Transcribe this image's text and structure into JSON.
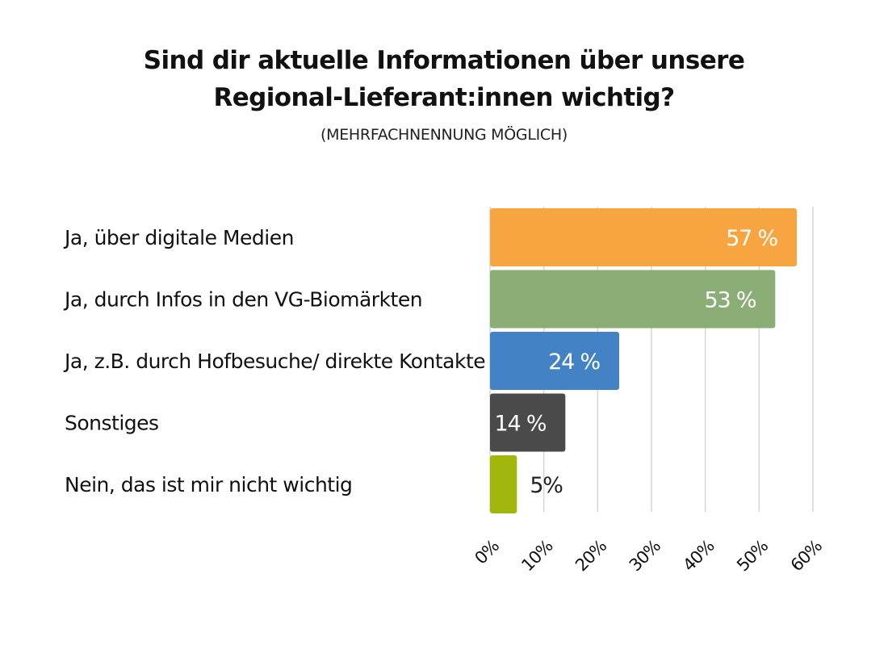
{
  "chart_data": {
    "type": "bar",
    "orientation": "horizontal",
    "title_lines": [
      "Sind dir aktuelle Informationen über unsere",
      "Regional-Lieferant:innen wichtig?"
    ],
    "subtitle": "(MEHRFACHNENNUNG MÖGLICH)",
    "categories": [
      "Ja, über digitale Medien",
      "Ja, durch Infos in den VG-Biomärkten",
      "Ja, z.B. durch Hofbesuche/ direkte Kontakte",
      "Sonstiges",
      "Nein, das ist mir nicht wichtig"
    ],
    "values": [
      57,
      53,
      24,
      14,
      5
    ],
    "value_labels": [
      "57 %",
      "53 %",
      "24 %",
      "14 %",
      "5%"
    ],
    "colors": [
      "#F7A540",
      "#8BAE76",
      "#4382C5",
      "#4A4A4A",
      "#A2B70E"
    ],
    "value_label_colors": [
      "#ffffff",
      "#ffffff",
      "#ffffff",
      "#ffffff",
      "#222222"
    ],
    "xlim": [
      0,
      60
    ],
    "x_ticks": [
      0,
      10,
      20,
      30,
      40,
      50,
      60
    ],
    "x_tick_labels": [
      "0%",
      "10%",
      "20%",
      "30%",
      "40%",
      "50%",
      "60%"
    ],
    "grid": true,
    "legend": "none"
  }
}
